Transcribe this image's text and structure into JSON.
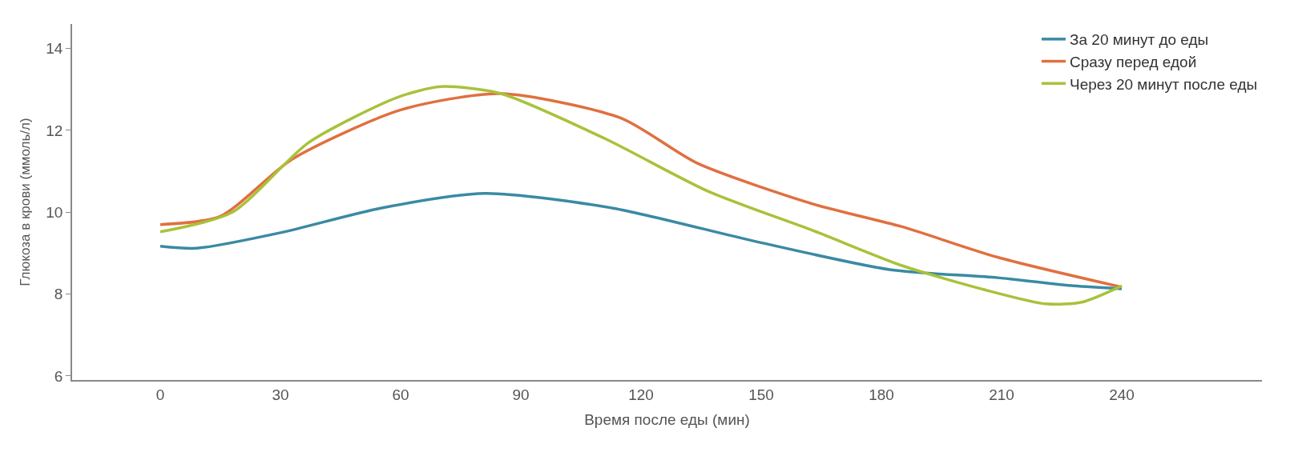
{
  "chart_data": {
    "type": "line",
    "xlabel": "Время после еды (мин)",
    "ylabel": "Глюкоза в крови (ммоль/л)",
    "xlim": [
      -22,
      275
    ],
    "xticks": [
      0,
      30,
      60,
      90,
      120,
      150,
      180,
      210,
      240
    ],
    "ylim": [
      5.9,
      14.6
    ],
    "yticks": [
      6,
      8,
      10,
      12,
      14
    ],
    "legend": "top right",
    "marker": "none",
    "line_style": "solid",
    "series": [
      {
        "name": "За 20 минут до еды",
        "color": "#3a8aa3",
        "x": [
          0,
          9,
          30,
          55,
          81,
          113,
          148,
          182,
          209,
          228,
          240
        ],
        "values": [
          9.17,
          9.12,
          9.5,
          10.1,
          10.46,
          10.1,
          9.3,
          8.6,
          8.4,
          8.2,
          8.13
        ]
      },
      {
        "name": "Сразу перед едой",
        "color": "#e0703f",
        "x": [
          0,
          15,
          33,
          60,
          85,
          115,
          134,
          163,
          185,
          209,
          240
        ],
        "values": [
          9.7,
          9.9,
          11.3,
          12.5,
          12.9,
          12.3,
          11.2,
          10.2,
          9.65,
          8.9,
          8.17
        ]
      },
      {
        "name": "Через 20 минут после еды",
        "color": "#a8c23a",
        "x": [
          0,
          18,
          37,
          59,
          70,
          85,
          111,
          137,
          163,
          185,
          206,
          221,
          230,
          240
        ],
        "values": [
          9.52,
          10.0,
          11.7,
          12.8,
          13.07,
          12.9,
          11.8,
          10.5,
          9.55,
          8.7,
          8.1,
          7.76,
          7.8,
          8.2
        ]
      }
    ]
  }
}
